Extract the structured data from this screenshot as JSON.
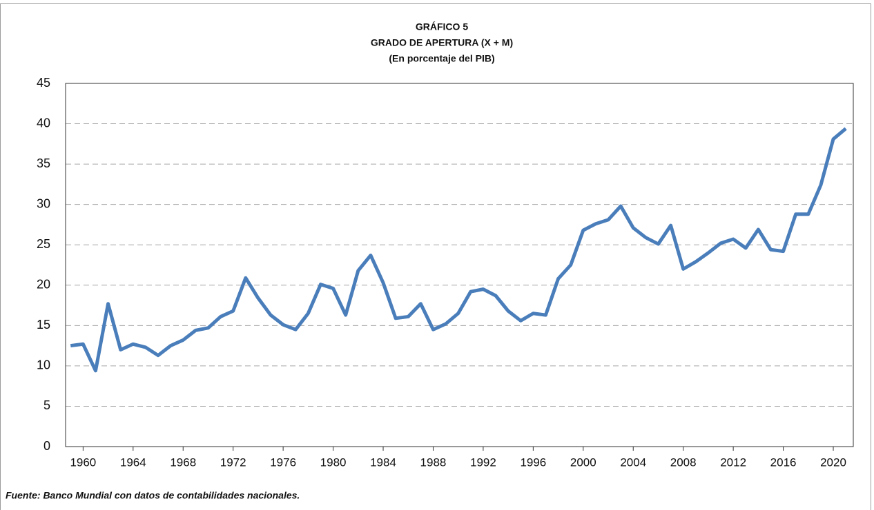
{
  "chart_data": {
    "type": "line",
    "title": "GRÁFICO 5",
    "subtitle": "GRADO DE APERTURA (X + M)",
    "subtitle2": "(En porcentaje del PIB)",
    "source": "Fuente: Banco Mundial con datos de contabilidades nacionales.",
    "x": [
      1959,
      1960,
      1961,
      1962,
      1963,
      1964,
      1965,
      1966,
      1967,
      1968,
      1969,
      1970,
      1971,
      1972,
      1973,
      1974,
      1975,
      1976,
      1977,
      1978,
      1979,
      1980,
      1981,
      1982,
      1983,
      1984,
      1985,
      1986,
      1987,
      1988,
      1989,
      1990,
      1991,
      1992,
      1993,
      1994,
      1995,
      1996,
      1997,
      1998,
      1999,
      2000,
      2001,
      2002,
      2003,
      2004,
      2005,
      2006,
      2007,
      2008,
      2009,
      2010,
      2011,
      2012,
      2013,
      2014,
      2015,
      2016,
      2017,
      2018,
      2019,
      2020,
      2021
    ],
    "series": [
      {
        "color": "#4a7ebb",
        "values": [
          12.5,
          12.7,
          9.4,
          17.7,
          12.0,
          12.7,
          12.3,
          11.3,
          12.5,
          13.2,
          14.4,
          14.7,
          16.1,
          16.8,
          20.9,
          18.4,
          16.3,
          15.1,
          14.5,
          16.5,
          20.1,
          19.6,
          16.3,
          21.8,
          23.7,
          20.3,
          15.9,
          16.1,
          17.7,
          14.5,
          15.2,
          16.5,
          19.2,
          19.5,
          18.7,
          16.8,
          15.6,
          16.5,
          16.3,
          20.8,
          22.5,
          26.8,
          27.6,
          28.1,
          29.8,
          27.1,
          25.9,
          25.1,
          27.4,
          22.0,
          22.9,
          24.0,
          25.2,
          25.7,
          24.6,
          26.9,
          24.4,
          24.2,
          28.8,
          28.8,
          32.4,
          38.1,
          39.4
        ]
      }
    ],
    "xlim": [
      1958.6,
      2021.6
    ],
    "xticks": [
      1960,
      1964,
      1968,
      1972,
      1976,
      1980,
      1984,
      1988,
      1992,
      1996,
      2000,
      2004,
      2008,
      2012,
      2016,
      2020
    ],
    "ylim": [
      0,
      45
    ],
    "yticks": [
      0,
      5,
      10,
      15,
      20,
      25,
      30,
      35,
      40,
      45
    ],
    "grid": true
  }
}
